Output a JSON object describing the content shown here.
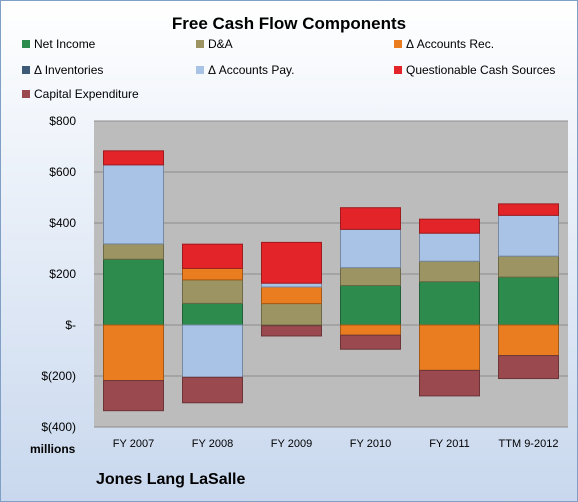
{
  "chart_data": {
    "type": "bar",
    "stacked": true,
    "title": "Free Cash Flow Components",
    "categories": [
      "FY 2007",
      "FY 2008",
      "FY 2009",
      "FY 2010",
      "FY 2011",
      "TTM 9-2012"
    ],
    "ylim": [
      -400,
      800
    ],
    "yticks": [
      800,
      600,
      400,
      200,
      0,
      -200,
      -400
    ],
    "ytick_labels": [
      "$800",
      "$600",
      "$400",
      "$200",
      "$-",
      "$(200)",
      "$(400)"
    ],
    "unit_label": "millions",
    "legend_position": "top",
    "grid": true,
    "series": [
      {
        "name": "Net Income",
        "color": "#2e8b4e",
        "values": [
          258,
          85,
          -3,
          155,
          170,
          188
        ]
      },
      {
        "name": "D&A",
        "color": "#9c9563",
        "values": [
          60,
          92,
          84,
          70,
          80,
          82
        ]
      },
      {
        "name": "Δ Accounts Rec.",
        "color": "#ea7d1f",
        "values": [
          -218,
          45,
          65,
          -40,
          -178,
          -120
        ]
      },
      {
        "name": "Δ Inventories",
        "color": "#3d5a78",
        "values": [
          0,
          0,
          0,
          0,
          0,
          0
        ]
      },
      {
        "name": "Δ Accounts Pay.",
        "color": "#a9c3e6",
        "values": [
          310,
          -205,
          15,
          150,
          110,
          160
        ]
      },
      {
        "name": "Questionable Cash Sources",
        "color": "#e3252a",
        "values": [
          55,
          95,
          160,
          85,
          55,
          45
        ]
      },
      {
        "name": "Capital Expenditure",
        "color": "#9a4a4f",
        "values": [
          -118,
          -100,
          -40,
          -55,
          -100,
          -90
        ]
      }
    ]
  },
  "footer": {
    "company": "Jones Lang LaSalle"
  }
}
